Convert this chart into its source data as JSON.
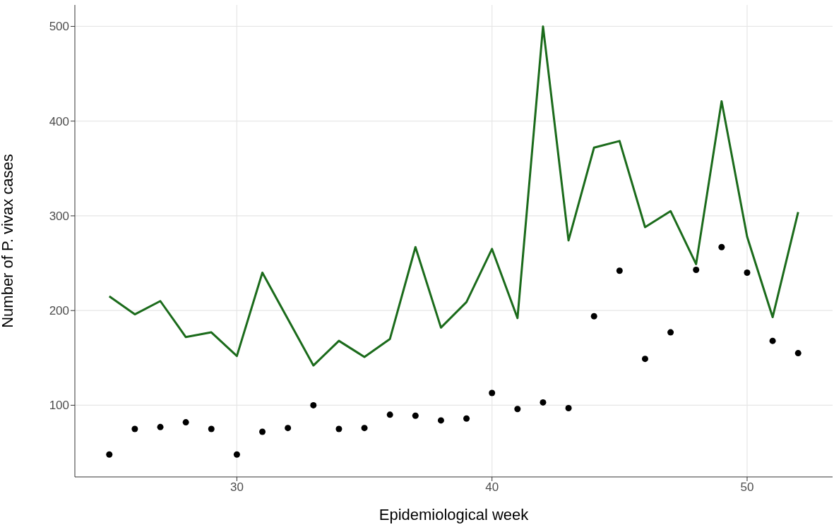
{
  "chart_data": {
    "type": "line",
    "xlabel": "Epidemiological week",
    "ylabel": "Number of P. vivax cases",
    "x": [
      25,
      26,
      27,
      28,
      29,
      30,
      31,
      32,
      33,
      34,
      35,
      36,
      37,
      38,
      39,
      40,
      41,
      42,
      43,
      44,
      45,
      46,
      47,
      48,
      49,
      50,
      51,
      52
    ],
    "series": [
      {
        "color": "#1b6b1b",
        "marker": "none",
        "line_style": "solid",
        "values": [
          215,
          196,
          210,
          172,
          177,
          152,
          240,
          191,
          142,
          168,
          151,
          170,
          267,
          182,
          209,
          265,
          192,
          500,
          274,
          372,
          379,
          288,
          305,
          249,
          421,
          278,
          193,
          304
        ]
      },
      {
        "type": "scatter",
        "color": "#000000",
        "marker": "circle",
        "values": [
          48,
          75,
          77,
          82,
          75,
          48,
          72,
          76,
          100,
          75,
          76,
          90,
          89,
          84,
          86,
          113,
          96,
          103,
          97,
          194,
          242,
          149,
          177,
          243,
          267,
          240,
          168,
          155
        ]
      }
    ],
    "xlim": [
      23.65,
      53.35
    ],
    "xticks": [
      30,
      40,
      50
    ],
    "ylim": [
      24.35,
      522.65
    ],
    "yticks": [
      100,
      200,
      300,
      400,
      500
    ],
    "grid": true,
    "legend": false
  }
}
